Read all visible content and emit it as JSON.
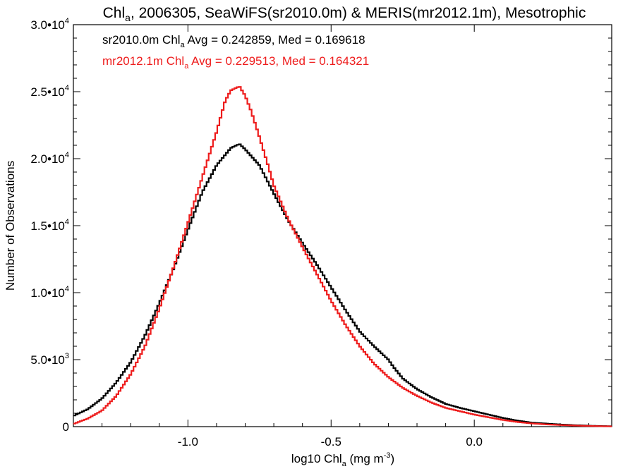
{
  "chart_data": {
    "type": "line",
    "title": {
      "main": "Chl",
      "main_sub": "a",
      "rest": ", 2006305, SeaWiFS(sr2010.0m) & MERIS(mr2012.1m), Mesotrophic"
    },
    "xlabel": {
      "pre": "log10 Chl",
      "sub": "a",
      "mid": " (mg m",
      "sup": "-3",
      "post": ")"
    },
    "ylabel": "Number of Observations",
    "xlim": [
      -1.4,
      0.48
    ],
    "ylim": [
      0,
      30000
    ],
    "grid": false,
    "x_ticks": [
      {
        "value": -1.0,
        "label": "-1.0"
      },
      {
        "value": -0.5,
        "label": "-0.5"
      },
      {
        "value": 0.0,
        "label": "0.0"
      }
    ],
    "y_ticks": [
      {
        "value": 0,
        "mant": "0",
        "exp": ""
      },
      {
        "value": 5000,
        "mant": "5.0•10",
        "exp": "3"
      },
      {
        "value": 10000,
        "mant": "1.0•10",
        "exp": "4"
      },
      {
        "value": 15000,
        "mant": "1.5•10",
        "exp": "4"
      },
      {
        "value": 20000,
        "mant": "2.0•10",
        "exp": "4"
      },
      {
        "value": 25000,
        "mant": "2.5•10",
        "exp": "4"
      },
      {
        "value": 30000,
        "mant": "3.0•10",
        "exp": "4"
      }
    ],
    "legend_placement": "top-left",
    "series": [
      {
        "name": "sr2010.0m",
        "color": "#000000",
        "legend": {
          "pre": "sr2010.0m Chl",
          "sub": "a",
          "post": " Avg = 0.242859, Med = 0.169618"
        },
        "points": [
          [
            -1.4,
            800
          ],
          [
            -1.35,
            1300
          ],
          [
            -1.3,
            2100
          ],
          [
            -1.25,
            3300
          ],
          [
            -1.2,
            4800
          ],
          [
            -1.15,
            6800
          ],
          [
            -1.1,
            9200
          ],
          [
            -1.05,
            11800
          ],
          [
            -1.0,
            14700
          ],
          [
            -0.95,
            17500
          ],
          [
            -0.9,
            19500
          ],
          [
            -0.85,
            20800
          ],
          [
            -0.82,
            21100
          ],
          [
            -0.8,
            20700
          ],
          [
            -0.75,
            19500
          ],
          [
            -0.7,
            17400
          ],
          [
            -0.65,
            15400
          ],
          [
            -0.6,
            13700
          ],
          [
            -0.55,
            12100
          ],
          [
            -0.5,
            10400
          ],
          [
            -0.45,
            8700
          ],
          [
            -0.4,
            7100
          ],
          [
            -0.35,
            6000
          ],
          [
            -0.3,
            5000
          ],
          [
            -0.28,
            4400
          ],
          [
            -0.25,
            3600
          ],
          [
            -0.2,
            2800
          ],
          [
            -0.15,
            2200
          ],
          [
            -0.1,
            1700
          ],
          [
            -0.05,
            1400
          ],
          [
            0.0,
            1150
          ],
          [
            0.05,
            900
          ],
          [
            0.1,
            650
          ],
          [
            0.15,
            450
          ],
          [
            0.2,
            300
          ],
          [
            0.25,
            230
          ],
          [
            0.3,
            160
          ],
          [
            0.35,
            110
          ],
          [
            0.4,
            70
          ],
          [
            0.45,
            40
          ],
          [
            0.48,
            30
          ]
        ]
      },
      {
        "name": "mr2012.1m",
        "color": "#ee1c1c",
        "legend": {
          "pre": "mr2012.1m Chl",
          "sub": "a",
          "post": " Avg = 0.229513, Med = 0.164321"
        },
        "points": [
          [
            -1.4,
            200
          ],
          [
            -1.35,
            600
          ],
          [
            -1.3,
            1200
          ],
          [
            -1.25,
            2300
          ],
          [
            -1.2,
            3900
          ],
          [
            -1.15,
            6000
          ],
          [
            -1.1,
            8800
          ],
          [
            -1.05,
            11900
          ],
          [
            -1.0,
            15200
          ],
          [
            -0.95,
            18600
          ],
          [
            -0.9,
            22000
          ],
          [
            -0.87,
            24300
          ],
          [
            -0.85,
            25100
          ],
          [
            -0.82,
            25400
          ],
          [
            -0.8,
            24700
          ],
          [
            -0.78,
            23600
          ],
          [
            -0.75,
            21600
          ],
          [
            -0.72,
            19500
          ],
          [
            -0.7,
            18000
          ],
          [
            -0.65,
            15500
          ],
          [
            -0.6,
            13400
          ],
          [
            -0.55,
            11400
          ],
          [
            -0.5,
            9400
          ],
          [
            -0.45,
            7600
          ],
          [
            -0.4,
            6000
          ],
          [
            -0.35,
            4700
          ],
          [
            -0.3,
            3700
          ],
          [
            -0.25,
            2900
          ],
          [
            -0.2,
            2300
          ],
          [
            -0.15,
            1800
          ],
          [
            -0.1,
            1400
          ],
          [
            -0.05,
            1150
          ],
          [
            0.0,
            900
          ],
          [
            0.05,
            700
          ],
          [
            0.1,
            500
          ],
          [
            0.15,
            350
          ],
          [
            0.2,
            240
          ],
          [
            0.25,
            170
          ],
          [
            0.3,
            120
          ],
          [
            0.35,
            80
          ],
          [
            0.4,
            50
          ],
          [
            0.45,
            30
          ],
          [
            0.48,
            20
          ]
        ]
      }
    ]
  }
}
